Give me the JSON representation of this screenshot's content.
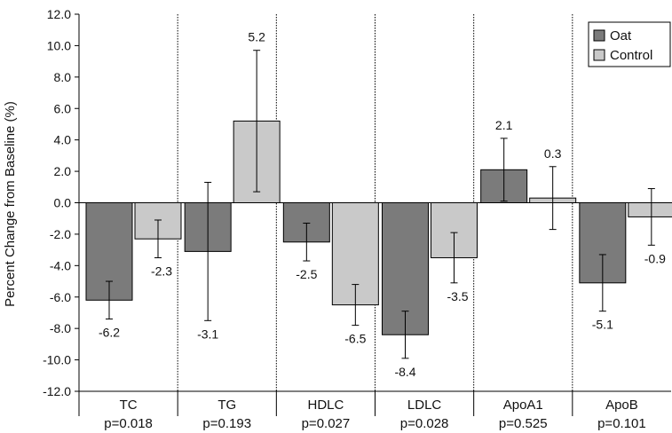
{
  "chart_data": {
    "type": "bar",
    "ylabel": "Percent Change from Baseline (%)",
    "xlabel": "",
    "ylim": [
      -12.0,
      12.0
    ],
    "yticks": [
      "12.0",
      "10.0",
      "8.0",
      "6.0",
      "4.0",
      "2.0",
      "0.0",
      "-2.0",
      "-4.0",
      "-6.0",
      "-8.0",
      "-10.0",
      "-12.0"
    ],
    "grid": false,
    "legend_position": "top-right",
    "categories": [
      "TC",
      "TG",
      "HDLC",
      "LDLC",
      "ApoA1",
      "ApoB"
    ],
    "p_values": [
      "p=0.018",
      "p=0.193",
      "p=0.027",
      "p=0.028",
      "p=0.525",
      "p=0.101"
    ],
    "series": [
      {
        "name": "Oat",
        "color": "#7b7b7b",
        "values": [
          -6.2,
          -3.1,
          -2.5,
          -8.4,
          2.1,
          -5.1
        ],
        "labels": [
          "-6.2",
          "-3.1",
          "-2.5",
          "-8.4",
          "2.1",
          "-5.1"
        ],
        "error": [
          1.2,
          4.4,
          1.2,
          1.5,
          2.0,
          1.8
        ]
      },
      {
        "name": "Control",
        "color": "#c9c9c9",
        "values": [
          -2.3,
          5.2,
          -6.5,
          -3.5,
          0.3,
          -0.9
        ],
        "labels": [
          "-2.3",
          "5.2",
          "-6.5",
          "-3.5",
          "0.3",
          "-0.9"
        ],
        "error": [
          1.2,
          4.5,
          1.3,
          1.6,
          2.0,
          1.8
        ]
      }
    ]
  }
}
